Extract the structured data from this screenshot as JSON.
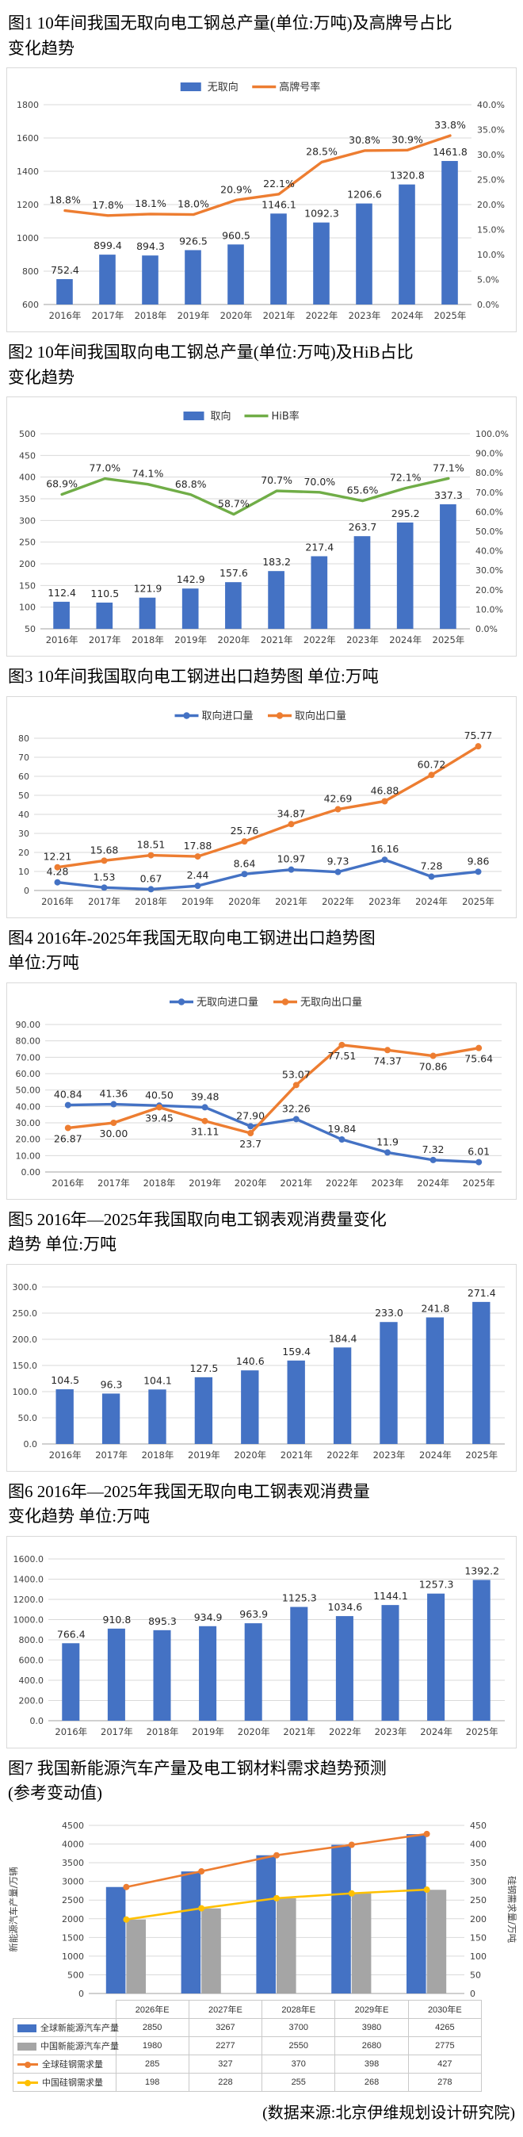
{
  "page": {
    "source_note": "(数据来源:北京伊维规划设计研究院)"
  },
  "chart_data": [
    {
      "id": "fig1",
      "type": "bar+line",
      "title_lines": [
        "图1 10年间我国无取向电工钢总产量(单位:万吨)及高牌号占比",
        "变化趋势"
      ],
      "categories": [
        "2016年",
        "2017年",
        "2018年",
        "2019年",
        "2020年",
        "2021年",
        "2022年",
        "2023年",
        "2024年",
        "2025年"
      ],
      "grid": true,
      "legend_position": "top-center",
      "left_axis": {
        "min": 600,
        "max": 1800,
        "ticks": [
          "1800",
          "1600",
          "1400",
          "1200",
          "1000",
          "800",
          "600"
        ]
      },
      "right_axis": {
        "min": 0,
        "max": 40,
        "ticks": [
          "40.0%",
          "35.0%",
          "30.0%",
          "25.0%",
          "20.0%",
          "15.0%",
          "10.0%",
          "5.0%",
          "0.0%"
        ]
      },
      "series": [
        {
          "name": "无取向",
          "kind": "bar",
          "axis": "left",
          "color": "#4472C4",
          "values": [
            752.4,
            899.4,
            894.3,
            926.5,
            960.5,
            1146.1,
            1092.3,
            1206.6,
            1320.8,
            1461.8
          ],
          "labels": [
            "752.4",
            "899.4",
            "894.3",
            "926.5",
            "960.5",
            "1146.1",
            "1092.3",
            "1206.6",
            "1320.8",
            "1461.8"
          ]
        },
        {
          "name": "高牌号率",
          "kind": "line",
          "axis": "right",
          "color": "#ED7D31",
          "marker": false,
          "values": [
            18.8,
            17.8,
            18.1,
            18.0,
            20.9,
            22.1,
            28.5,
            30.8,
            30.9,
            33.8
          ],
          "labels": [
            "18.8%",
            "17.8%",
            "18.1%",
            "18.0%",
            "20.9%",
            "22.1%",
            "28.5%",
            "30.8%",
            "30.9%",
            "33.8%"
          ]
        }
      ]
    },
    {
      "id": "fig2",
      "type": "bar+line",
      "title_lines": [
        "图2 10年间我国取向电工钢总产量(单位:万吨)及HiB占比",
        "变化趋势"
      ],
      "categories": [
        "2016年",
        "2017年",
        "2018年",
        "2019年",
        "2020年",
        "2021年",
        "2022年",
        "2023年",
        "2024年",
        "2025年"
      ],
      "grid": true,
      "legend_position": "top-center",
      "left_axis": {
        "min": 50,
        "max": 500,
        "ticks": [
          "500",
          "450",
          "400",
          "350",
          "300",
          "250",
          "200",
          "150",
          "100",
          "50"
        ]
      },
      "right_axis": {
        "min": 0,
        "max": 100,
        "ticks": [
          "100.0%",
          "90.0%",
          "80.0%",
          "70.0%",
          "60.0%",
          "50.0%",
          "40.0%",
          "30.0%",
          "20.0%",
          "10.0%",
          "0.0%"
        ]
      },
      "series": [
        {
          "name": "取向",
          "kind": "bar",
          "axis": "left",
          "color": "#4472C4",
          "values": [
            112.4,
            110.5,
            121.9,
            142.9,
            157.6,
            183.2,
            217.4,
            263.7,
            295.2,
            337.3
          ],
          "labels": [
            "112.4",
            "110.5",
            "121.9",
            "142.9",
            "157.6",
            "183.2",
            "217.4",
            "263.7",
            "295.2",
            "337.3"
          ]
        },
        {
          "name": "HiB率",
          "kind": "line",
          "axis": "right",
          "color": "#70AD47",
          "marker": false,
          "values": [
            68.9,
            77.0,
            74.1,
            68.8,
            58.7,
            70.7,
            70.0,
            65.6,
            72.1,
            77.1
          ],
          "labels": [
            "68.9%",
            "77.0%",
            "74.1%",
            "68.8%",
            "58.7%",
            "70.7%",
            "70.0%",
            "65.6%",
            "72.1%",
            "77.1%"
          ]
        }
      ]
    },
    {
      "id": "fig3",
      "type": "line",
      "title_lines": [
        "图3 10年间我国取向电工钢进出口趋势图 单位:万吨"
      ],
      "categories": [
        "2016年",
        "2017年",
        "2018年",
        "2019年",
        "2020年",
        "2021年",
        "2022年",
        "2023年",
        "2024年",
        "2025年"
      ],
      "grid": true,
      "legend_position": "top-center",
      "left_axis": {
        "min": 0,
        "max": 80,
        "ticks": [
          "80",
          "70",
          "60",
          "50",
          "40",
          "30",
          "20",
          "10",
          "0"
        ]
      },
      "series": [
        {
          "name": "取向进口量",
          "kind": "line",
          "axis": "left",
          "color": "#4472C4",
          "marker": true,
          "values": [
            4.28,
            1.53,
            0.67,
            2.44,
            8.64,
            10.97,
            9.73,
            16.16,
            7.28,
            9.86
          ],
          "labels": [
            "4.28",
            "1.53",
            "0.67",
            "2.44",
            "8.64",
            "10.97",
            "9.73",
            "16.16",
            "7.28",
            "9.86"
          ]
        },
        {
          "name": "取向出口量",
          "kind": "line",
          "axis": "left",
          "color": "#ED7D31",
          "marker": true,
          "values": [
            12.21,
            15.68,
            18.51,
            17.88,
            25.76,
            34.87,
            42.69,
            46.88,
            60.72,
            75.77
          ],
          "labels": [
            "12.21",
            "15.68",
            "18.51",
            "17.88",
            "25.76",
            "34.87",
            "42.69",
            "46.88",
            "60.72",
            "75.77"
          ]
        }
      ]
    },
    {
      "id": "fig4",
      "type": "line",
      "title_lines": [
        "图4 2016年-2025年我国无取向电工钢进出口趋势图",
        "单位:万吨"
      ],
      "categories": [
        "2016年",
        "2017年",
        "2018年",
        "2019年",
        "2020年",
        "2021年",
        "2022年",
        "2023年",
        "2024年",
        "2025年"
      ],
      "grid": true,
      "legend_position": "top-center",
      "left_axis": {
        "min": 0,
        "max": 90,
        "ticks": [
          "90.00",
          "80.00",
          "70.00",
          "60.00",
          "50.00",
          "40.00",
          "30.00",
          "20.00",
          "10.00",
          "0.00"
        ]
      },
      "series": [
        {
          "name": "无取向进口量",
          "kind": "line",
          "axis": "left",
          "color": "#4472C4",
          "marker": true,
          "values": [
            40.84,
            41.36,
            40.5,
            39.48,
            27.9,
            32.26,
            19.84,
            11.9,
            7.32,
            6.01
          ],
          "labels": [
            "40.84",
            "41.36",
            "40.50",
            "39.48",
            "27.90",
            "32.26",
            "19.84",
            "11.9",
            "7.32",
            "6.01"
          ]
        },
        {
          "name": "无取向出口量",
          "kind": "line",
          "axis": "left",
          "color": "#ED7D31",
          "marker": true,
          "values": [
            26.87,
            30.0,
            39.45,
            31.11,
            23.7,
            53.07,
            77.51,
            74.37,
            70.86,
            75.64
          ],
          "labels": [
            "26.87",
            "30.00",
            "39.45",
            "31.11",
            "23.7",
            "53.07",
            "77.51",
            "74.37",
            "70.86",
            "75.64"
          ],
          "label_side": [
            "b",
            "b",
            "b",
            "b",
            "b",
            "a",
            "b",
            "b",
            "b",
            "b"
          ]
        }
      ]
    },
    {
      "id": "fig5",
      "type": "bar",
      "title_lines": [
        "图5 2016年—2025年我国取向电工钢表观消费量变化",
        "趋势 单位:万吨"
      ],
      "categories": [
        "2016年",
        "2017年",
        "2018年",
        "2019年",
        "2020年",
        "2021年",
        "2022年",
        "2023年",
        "2024年",
        "2025年"
      ],
      "grid": true,
      "legend": false,
      "left_axis": {
        "min": 0,
        "max": 300,
        "ticks": [
          "300.0",
          "250.0",
          "200.0",
          "150.0",
          "100.0",
          "50.0",
          "0.0"
        ]
      },
      "series": [
        {
          "name": "取向表观消费量",
          "kind": "bar",
          "axis": "left",
          "color": "#4472C4",
          "values": [
            104.5,
            96.3,
            104.1,
            127.5,
            140.6,
            159.4,
            184.4,
            233.0,
            241.8,
            271.4
          ],
          "labels": [
            "104.5",
            "96.3",
            "104.1",
            "127.5",
            "140.6",
            "159.4",
            "184.4",
            "233.0",
            "241.8",
            "271.4"
          ]
        }
      ]
    },
    {
      "id": "fig6",
      "type": "bar",
      "title_lines": [
        "图6 2016年—2025年我国无取向电工钢表观消费量",
        "变化趋势 单位:万吨"
      ],
      "categories": [
        "2016年",
        "2017年",
        "2018年",
        "2019年",
        "2020年",
        "2021年",
        "2022年",
        "2023年",
        "2024年",
        "2025年"
      ],
      "grid": true,
      "legend": false,
      "left_axis": {
        "min": 0,
        "max": 1600,
        "ticks": [
          "1600.0",
          "1400.0",
          "1200.0",
          "1000.0",
          "800.0",
          "600.0",
          "400.0",
          "200.0",
          "0.0"
        ]
      },
      "series": [
        {
          "name": "无取向表观消费量",
          "kind": "bar",
          "axis": "left",
          "color": "#4472C4",
          "values": [
            766.4,
            910.8,
            895.3,
            934.9,
            963.9,
            1125.3,
            1034.6,
            1144.1,
            1257.3,
            1392.2
          ],
          "labels": [
            "766.4",
            "910.8",
            "895.3",
            "934.9",
            "963.9",
            "1125.3",
            "1034.6",
            "1144.1",
            "1257.3",
            "1392.2"
          ]
        }
      ]
    },
    {
      "id": "fig7",
      "type": "bar+line",
      "title_lines": [
        "图7 我国新能源汽车产量及电工钢材料需求趋势预测",
        "(参考变动值)"
      ],
      "categories": [
        "2026年E",
        "2027年E",
        "2028年E",
        "2029年E",
        "2030年E"
      ],
      "grid": true,
      "legend": "table",
      "left_axis": {
        "min": 0,
        "max": 4500,
        "title": "新能源汽车产量/万辆",
        "ticks": [
          "4500",
          "4000",
          "3500",
          "3000",
          "2500",
          "2000",
          "1500",
          "1000",
          "500",
          "0"
        ]
      },
      "right_axis": {
        "min": 0,
        "max": 450,
        "title": "硅钢需求量/万吨",
        "ticks": [
          "450",
          "400",
          "350",
          "300",
          "250",
          "200",
          "150",
          "100",
          "50",
          "0"
        ]
      },
      "series": [
        {
          "name": "全球新能源汽车产量",
          "kind": "bar",
          "axis": "left",
          "color": "#4472C4",
          "values": [
            2850,
            3267,
            3700,
            3980,
            4265
          ],
          "labels": [
            "2850",
            "3267",
            "3700",
            "3980",
            "4265"
          ]
        },
        {
          "name": "中国新能源汽车产量",
          "kind": "bar",
          "axis": "left",
          "color": "#A5A5A5",
          "values": [
            1980,
            2277,
            2550,
            2680,
            2775
          ],
          "labels": [
            "1980",
            "2277",
            "2550",
            "2680",
            "2775"
          ]
        },
        {
          "name": "全球硅钢需求量",
          "kind": "line",
          "axis": "right",
          "color": "#ED7D31",
          "marker": true,
          "values": [
            285,
            327,
            370,
            398,
            427
          ],
          "labels": [
            "285",
            "327",
            "370",
            "398",
            "427"
          ]
        },
        {
          "name": "中国硅钢需求量",
          "kind": "line",
          "axis": "right",
          "color": "#FFC000",
          "marker": true,
          "values": [
            198,
            228,
            255,
            268,
            278
          ],
          "labels": [
            "198",
            "228",
            "255",
            "268",
            "278"
          ]
        }
      ]
    }
  ]
}
